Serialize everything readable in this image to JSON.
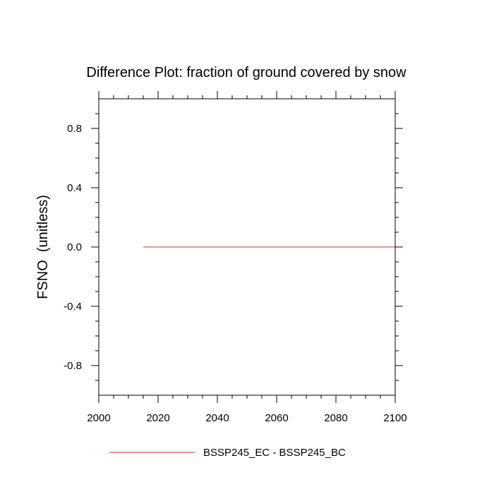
{
  "chart_data": {
    "type": "line",
    "title": "Difference Plot: fraction of ground covered by snow",
    "xlabel": "",
    "ylabel": "FSNO  (unitless)",
    "xlim": [
      2000,
      2100
    ],
    "ylim": [
      -1.0,
      1.0
    ],
    "x_ticks": [
      2000,
      2020,
      2040,
      2060,
      2080,
      2100
    ],
    "x_tick_labels": [
      "2000",
      "2020",
      "2040",
      "2060",
      "2080",
      "2100"
    ],
    "y_ticks": [
      -0.8,
      -0.4,
      0.0,
      0.4,
      0.8
    ],
    "y_tick_labels": [
      "-0.8",
      "-0.4",
      "0.0",
      "0.4",
      "0.8"
    ],
    "grid": false,
    "legend_position": "bottom",
    "series": [
      {
        "name": "BSSP245_EC - BSSP245_BC",
        "color": "#e8706b",
        "x": [
          2015,
          2100
        ],
        "values": [
          0.0,
          0.0
        ]
      }
    ]
  }
}
